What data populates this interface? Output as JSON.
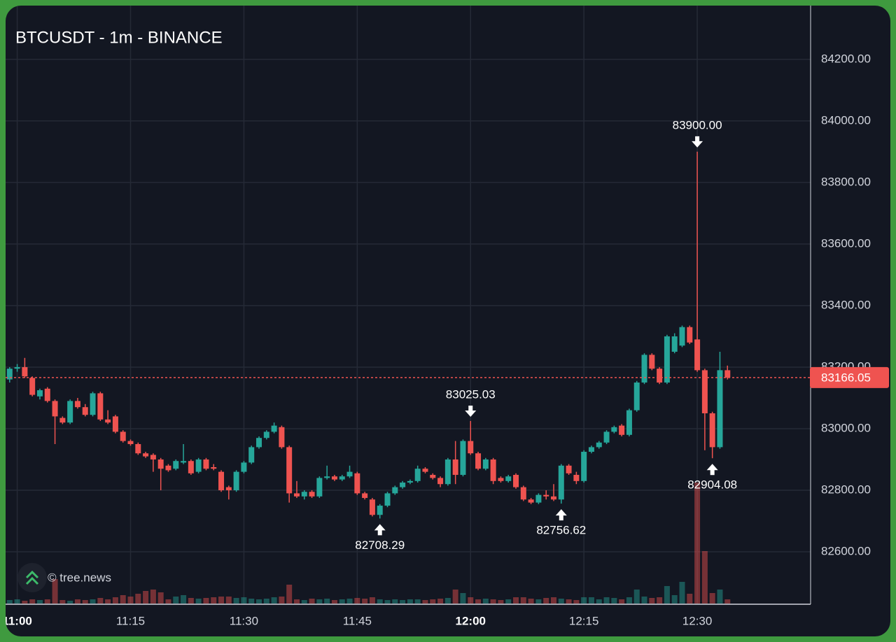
{
  "chart_data": {
    "type": "candlestick",
    "title": "BTCUSDT - 1m - BINANCE",
    "watermark": "© tree.news",
    "up_color": "#26a69a",
    "down_color": "#ef5350",
    "grid": true,
    "x": [
      "10:59",
      "11:00",
      "11:01",
      "11:02",
      "11:03",
      "11:04",
      "11:05",
      "11:06",
      "11:07",
      "11:08",
      "11:09",
      "11:10",
      "11:11",
      "11:12",
      "11:13",
      "11:14",
      "11:15",
      "11:16",
      "11:17",
      "11:18",
      "11:19",
      "11:20",
      "11:21",
      "11:22",
      "11:23",
      "11:24",
      "11:25",
      "11:26",
      "11:27",
      "11:28",
      "11:29",
      "11:30",
      "11:31",
      "11:32",
      "11:33",
      "11:34",
      "11:35",
      "11:36",
      "11:37",
      "11:38",
      "11:39",
      "11:40",
      "11:41",
      "11:42",
      "11:43",
      "11:44",
      "11:45",
      "11:46",
      "11:47",
      "11:48",
      "11:49",
      "11:50",
      "11:51",
      "11:52",
      "11:53",
      "11:54",
      "11:55",
      "11:56",
      "11:57",
      "11:58",
      "11:59",
      "12:00",
      "12:01",
      "12:02",
      "12:03",
      "12:04",
      "12:05",
      "12:06",
      "12:07",
      "12:08",
      "12:09",
      "12:10",
      "12:11",
      "12:12",
      "12:13",
      "12:14",
      "12:15",
      "12:16",
      "12:17",
      "12:18",
      "12:19",
      "12:20",
      "12:21",
      "12:22",
      "12:23",
      "12:24",
      "12:25",
      "12:26",
      "12:27",
      "12:28",
      "12:29",
      "12:30",
      "12:31",
      "12:32",
      "12:33",
      "12:34"
    ],
    "open": [
      83160,
      83195,
      83200,
      83165,
      83105,
      83130,
      83090,
      83035,
      83020,
      83090,
      83070,
      83045,
      83115,
      83030,
      83040,
      82990,
      82960,
      82950,
      82920,
      82915,
      82900,
      82880,
      82870,
      82890,
      82895,
      82860,
      82900,
      82875,
      82860,
      82810,
      82800,
      82860,
      82890,
      82940,
      82970,
      82990,
      83005,
      82940,
      82790,
      82780,
      82795,
      82780,
      82840,
      82845,
      82835,
      82845,
      82855,
      82790,
      82770,
      82720,
      82750,
      82790,
      82810,
      82825,
      82830,
      82870,
      82850,
      82840,
      82820,
      82900,
      82850,
      82960,
      82920,
      82870,
      82900,
      82840,
      82830,
      82850,
      82810,
      82770,
      82760,
      82785,
      82780,
      82770,
      82880,
      82850,
      82830,
      82925,
      82940,
      82955,
      82990,
      83010,
      82980,
      83060,
      83150,
      83240,
      83195,
      83150,
      83250,
      83270,
      83330,
      83290,
      83190,
      83050,
      82940,
      83190
    ],
    "high": [
      83200,
      83210,
      83230,
      83170,
      83130,
      83135,
      83095,
      83040,
      83095,
      83100,
      83080,
      83120,
      83120,
      83060,
      83045,
      82995,
      82965,
      82955,
      82925,
      82920,
      82905,
      82885,
      82900,
      82950,
      82900,
      82905,
      82905,
      82885,
      82865,
      82815,
      82865,
      82895,
      82945,
      82975,
      82995,
      83020,
      83010,
      82945,
      82830,
      82800,
      82800,
      82845,
      82880,
      82850,
      82850,
      82880,
      82860,
      82795,
      82775,
      82755,
      82795,
      82815,
      82830,
      82835,
      82880,
      82875,
      82855,
      82845,
      82905,
      82960,
      82965,
      83025.03,
      82925,
      82905,
      82905,
      82845,
      82850,
      82855,
      82815,
      82775,
      82790,
      82800,
      82820,
      82885,
      82885,
      82860,
      82930,
      82945,
      82960,
      82995,
      83010,
      83015,
      83065,
      83155,
      83245,
      83245,
      83200,
      83305,
      83310,
      83335,
      83335,
      83900,
      83195,
      83055,
      83250,
      83205
    ],
    "low": [
      83150,
      83185,
      83165,
      83105,
      83095,
      83085,
      82950,
      83015,
      83015,
      83065,
      83040,
      83040,
      83025,
      83015,
      82985,
      82955,
      82945,
      82915,
      82905,
      82860,
      82800,
      82860,
      82865,
      82885,
      82850,
      82855,
      82865,
      82865,
      82795,
      82770,
      82795,
      82855,
      82885,
      82935,
      82965,
      82985,
      82935,
      82760,
      82775,
      82770,
      82775,
      82775,
      82835,
      82830,
      82830,
      82840,
      82785,
      82770,
      82715,
      82708.29,
      82745,
      82785,
      82805,
      82820,
      82825,
      82855,
      82835,
      82810,
      82815,
      82820,
      82845,
      82915,
      82865,
      82865,
      82820,
      82825,
      82825,
      82805,
      82765,
      82755,
      82755,
      82770,
      82765,
      82756.62,
      82850,
      82820,
      82825,
      82920,
      82935,
      82950,
      82985,
      82975,
      82975,
      83055,
      83145,
      83190,
      83145,
      83145,
      83245,
      83265,
      83275,
      83185,
      82930,
      82904.08,
      82935,
      83160
    ],
    "close": [
      83195,
      83200,
      83170,
      83110,
      83125,
      83090,
      83040,
      83020,
      83090,
      83070,
      83045,
      83115,
      83030,
      83020,
      82990,
      82960,
      82950,
      82920,
      82910,
      82900,
      82870,
      82865,
      82895,
      82895,
      82855,
      82900,
      82870,
      82870,
      82800,
      82800,
      82860,
      82890,
      82940,
      82970,
      82990,
      83010,
      82940,
      82790,
      82780,
      82795,
      82780,
      82840,
      82845,
      82835,
      82845,
      82860,
      82790,
      82775,
      82720,
      82750,
      82790,
      82810,
      82825,
      82830,
      82870,
      82860,
      82840,
      82820,
      82900,
      82850,
      82960,
      82920,
      82870,
      82900,
      82830,
      82830,
      82845,
      82810,
      82770,
      82760,
      82785,
      82780,
      82770,
      82880,
      82855,
      82830,
      82925,
      82940,
      82955,
      82990,
      83005,
      82980,
      83060,
      83150,
      83240,
      83195,
      83150,
      83300,
      83300,
      83330,
      83280,
      83190,
      83050,
      82940,
      83190,
      83166.05
    ],
    "volume": [
      5,
      6,
      4,
      6,
      5,
      6,
      35,
      5,
      4,
      6,
      5,
      6,
      8,
      6,
      9,
      12,
      10,
      14,
      18,
      20,
      16,
      6,
      10,
      12,
      8,
      7,
      8,
      9,
      10,
      10,
      8,
      9,
      7,
      6,
      7,
      9,
      10,
      27,
      6,
      5,
      7,
      6,
      7,
      5,
      6,
      7,
      8,
      7,
      9,
      6,
      5,
      6,
      5,
      6,
      6,
      5,
      6,
      7,
      8,
      20,
      15,
      9,
      6,
      7,
      6,
      5,
      6,
      9,
      9,
      7,
      6,
      8,
      9,
      7,
      6,
      5,
      9,
      9,
      6,
      9,
      8,
      6,
      9,
      20,
      10,
      8,
      9,
      25,
      12,
      31,
      14,
      173,
      75,
      15,
      20,
      6
    ],
    "price_label": "83166.05",
    "markers": [
      {
        "x": "12:30",
        "side": "high",
        "label": "83900.00"
      },
      {
        "x": "12:00",
        "side": "high",
        "label": "83025.03"
      },
      {
        "x": "11:48",
        "side": "low",
        "label": "82708.29"
      },
      {
        "x": "12:12",
        "side": "low",
        "label": "82756.62"
      },
      {
        "x": "12:32",
        "side": "low",
        "label": "82904.08"
      }
    ],
    "xlim": [
      "10:58",
      "12:45"
    ],
    "xticks": [
      "11:00",
      "11:15",
      "11:30",
      "11:45",
      "12:00",
      "12:15",
      "12:30"
    ],
    "ylim": [
      82432,
      84370
    ],
    "yticks": [
      {
        "value": 82600,
        "label": "82600.00"
      },
      {
        "value": 82800,
        "label": "82800.00"
      },
      {
        "value": 83000,
        "label": "83000.00"
      },
      {
        "value": 83200,
        "label": "83200.00"
      },
      {
        "value": 83400,
        "label": "83400.00"
      },
      {
        "value": 83600,
        "label": "83600.00"
      },
      {
        "value": 83800,
        "label": "83800.00"
      },
      {
        "value": 84000,
        "label": "84000.00"
      },
      {
        "value": 84200,
        "label": "84200.00"
      }
    ]
  }
}
